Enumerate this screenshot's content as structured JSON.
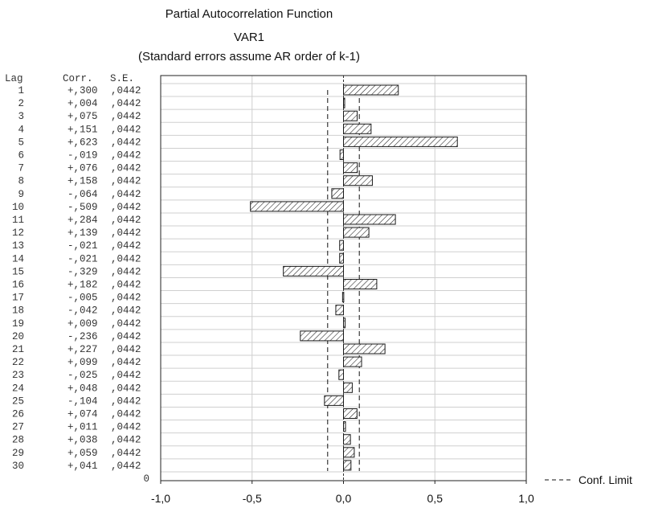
{
  "chart_data": {
    "type": "bar",
    "orientation": "horizontal",
    "title": "Partial Autocorrelation Function",
    "subtitle": "VAR1",
    "note": "(Standard errors assume AR order of k-1)",
    "table_headers": {
      "lag": "Lag",
      "corr": "Corr.",
      "se": "S.E."
    },
    "lags": [
      1,
      2,
      3,
      4,
      5,
      6,
      7,
      8,
      9,
      10,
      11,
      12,
      13,
      14,
      15,
      16,
      17,
      18,
      19,
      20,
      21,
      22,
      23,
      24,
      25,
      26,
      27,
      28,
      29,
      30
    ],
    "values": [
      0.3,
      0.004,
      0.075,
      0.151,
      0.623,
      -0.019,
      0.076,
      0.158,
      -0.064,
      -0.509,
      0.284,
      0.139,
      -0.021,
      -0.021,
      -0.329,
      0.182,
      -0.005,
      -0.042,
      0.009,
      -0.236,
      0.227,
      0.099,
      -0.025,
      0.048,
      -0.104,
      0.074,
      0.011,
      0.038,
      0.059,
      0.041
    ],
    "corr_labels": [
      "+,300",
      "+,004",
      "+,075",
      "+,151",
      "+,623",
      "-,019",
      "+,076",
      "+,158",
      "-,064",
      "-,509",
      "+,284",
      "+,139",
      "-,021",
      "-,021",
      "-,329",
      "+,182",
      "-,005",
      "-,042",
      "+,009",
      "-,236",
      "+,227",
      "+,099",
      "-,025",
      "+,048",
      "-,104",
      "+,074",
      "+,011",
      "+,038",
      "+,059",
      "+,041"
    ],
    "se_labels": [
      ",0442",
      ",0442",
      ",0442",
      ",0442",
      ",0442",
      ",0442",
      ",0442",
      ",0442",
      ",0442",
      ",0442",
      ",0442",
      ",0442",
      ",0442",
      ",0442",
      ",0442",
      ",0442",
      ",0442",
      ",0442",
      ",0442",
      ",0442",
      ",0442",
      ",0442",
      ",0442",
      ",0442",
      ",0442",
      ",0442",
      ",0442",
      ",0442",
      ",0442",
      ",0442"
    ],
    "extra_row_label": "0",
    "conf_limit": 0.0866,
    "xlim": [
      -1.0,
      1.0
    ],
    "xticks": [
      "-1,0",
      "-0,5",
      "0,0",
      "0,5",
      "1,0"
    ],
    "legend": {
      "label": "Conf. Limit",
      "style": "dashed",
      "placement": "bottom-right"
    },
    "bar_fill": "hatched",
    "colors": {
      "bar_stroke": "#1a1a1a",
      "grid": "#cfcfcf",
      "axis": "#222222"
    }
  }
}
